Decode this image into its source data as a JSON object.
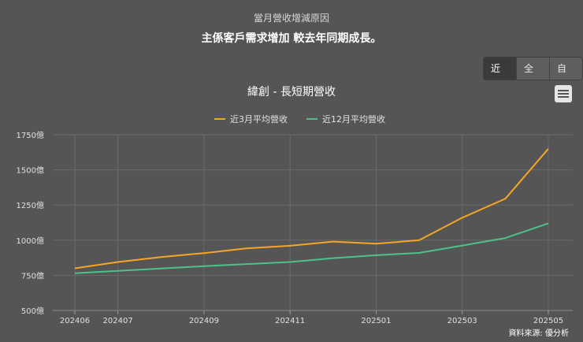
{
  "header": {
    "reason_title": "當月營收增減原因",
    "reason_text": "主係客戶需求增加 較去年同期成長。"
  },
  "range_buttons": [
    {
      "label": "近期",
      "active": true
    },
    {
      "label": "全部",
      "active": false
    },
    {
      "label": "自訂",
      "active": false
    }
  ],
  "menu": {
    "icon": "hamburger-menu-icon"
  },
  "credit": "資料來源: 優分析",
  "chart_data": {
    "type": "line",
    "title": "緯創 - 長短期營收",
    "xlabel": "",
    "ylabel": "",
    "x": [
      "202406",
      "202407",
      "202408",
      "202409",
      "202410",
      "202411",
      "202412",
      "202501",
      "202502",
      "202503",
      "202504",
      "202505"
    ],
    "x_tick_labels": [
      "202406",
      "202407",
      "202409",
      "202411",
      "202501",
      "202503",
      "202505"
    ],
    "ylim": [
      500,
      1750
    ],
    "y_ticks": [
      500,
      750,
      1000,
      1250,
      1500,
      1750
    ],
    "y_unit": "億",
    "grid": true,
    "legend_position": "top-center",
    "series": [
      {
        "name": "近3月平均營收",
        "color": "#f5a623",
        "values": [
          800,
          845,
          880,
          908,
          942,
          960,
          990,
          975,
          1000,
          1160,
          1295,
          1650
        ]
      },
      {
        "name": "近12月平均營收",
        "color": "#4cc28a",
        "values": [
          765,
          782,
          798,
          815,
          830,
          845,
          872,
          893,
          910,
          962,
          1015,
          1120
        ]
      }
    ]
  }
}
